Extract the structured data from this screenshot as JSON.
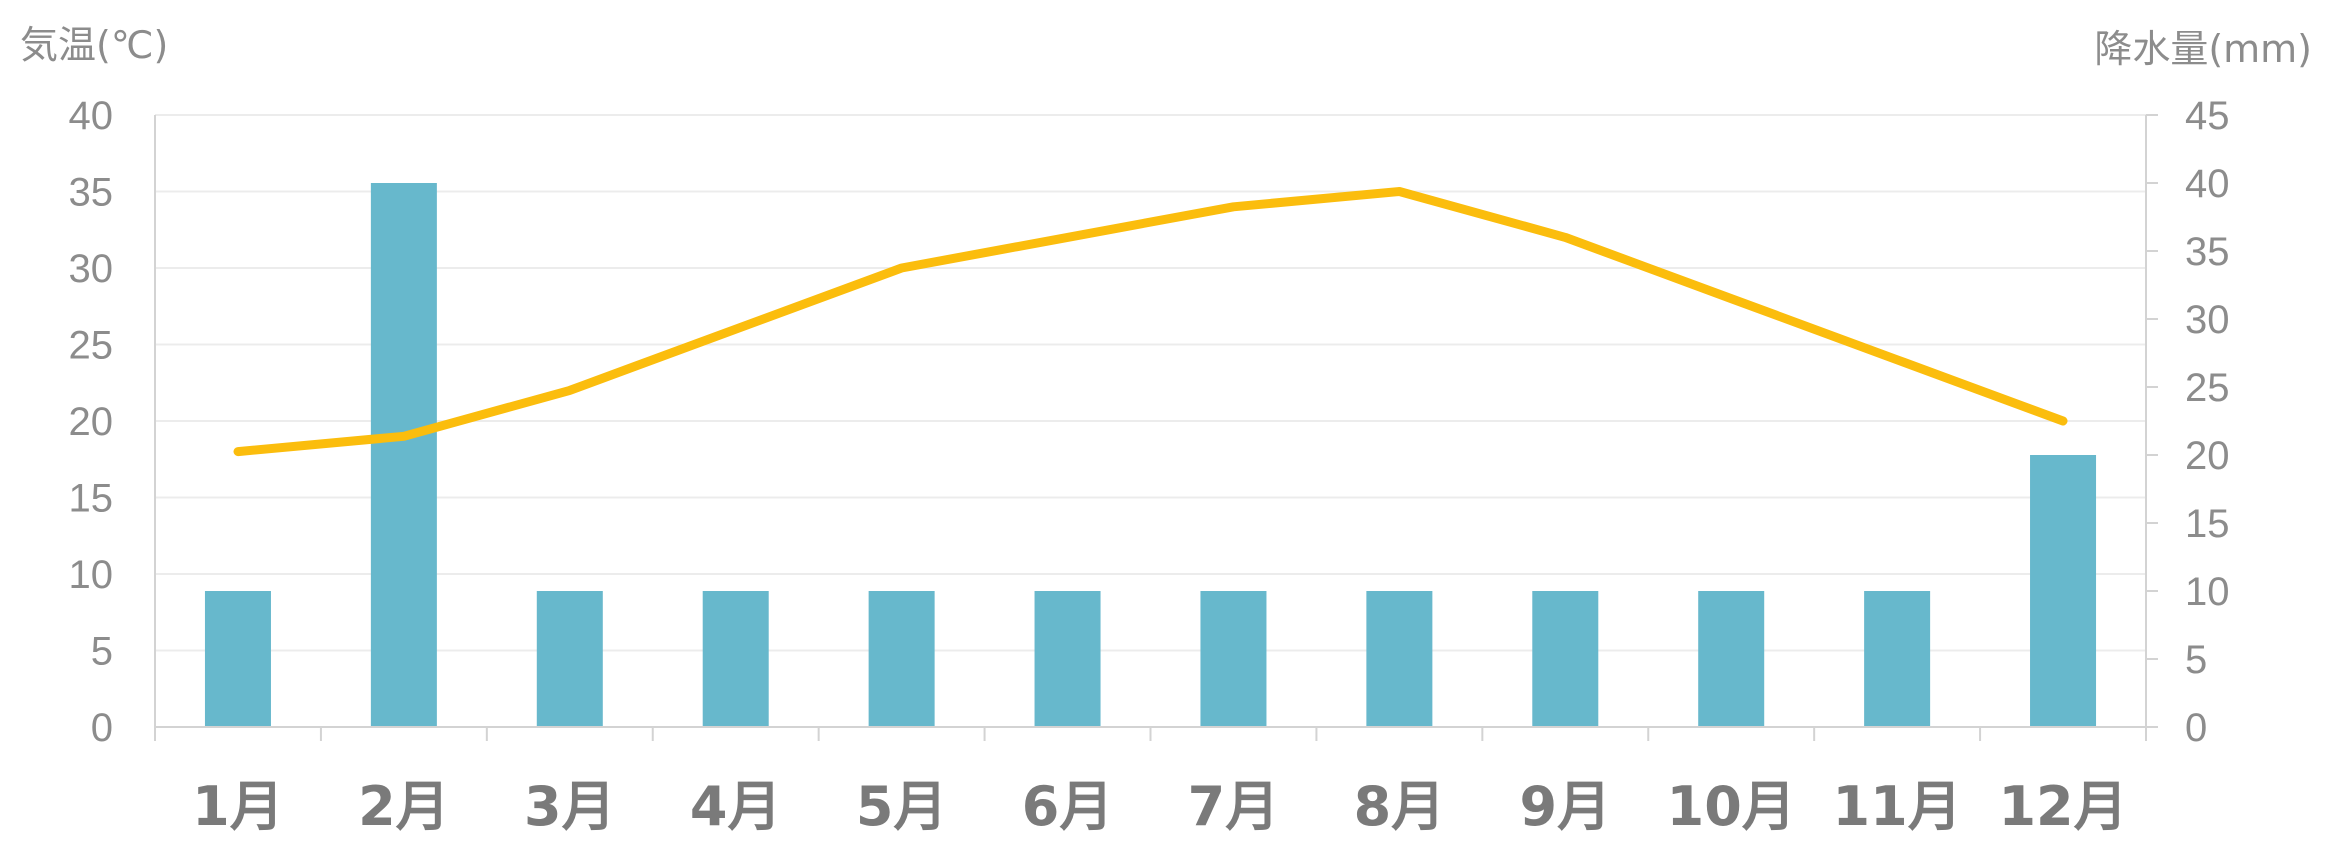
{
  "chart_data": {
    "type": "bar+line",
    "categories": [
      "1月",
      "2月",
      "3月",
      "4月",
      "5月",
      "6月",
      "7月",
      "8月",
      "9月",
      "10月",
      "11月",
      "12月"
    ],
    "series": [
      {
        "type": "bar",
        "axis": "right",
        "color": "#67b8cc",
        "values": [
          10,
          40,
          10,
          10,
          10,
          10,
          10,
          10,
          10,
          10,
          10,
          20
        ]
      },
      {
        "type": "line",
        "axis": "left",
        "color": "#fbbd0d",
        "values": [
          18,
          19,
          22,
          26,
          30,
          32,
          34,
          35,
          32,
          28,
          24,
          20
        ]
      }
    ],
    "y_left": {
      "label": "気温(℃)",
      "min": 0,
      "max": 40,
      "step": 5,
      "ticks": [
        "0",
        "5",
        "10",
        "15",
        "20",
        "25",
        "30",
        "35",
        "40"
      ]
    },
    "y_right": {
      "label": "降水量(mm)",
      "min": 0,
      "max": 45,
      "step": 5,
      "ticks": [
        "0",
        "5",
        "10",
        "15",
        "20",
        "25",
        "30",
        "35",
        "40",
        "45"
      ]
    },
    "grid": true,
    "legend": "none"
  }
}
